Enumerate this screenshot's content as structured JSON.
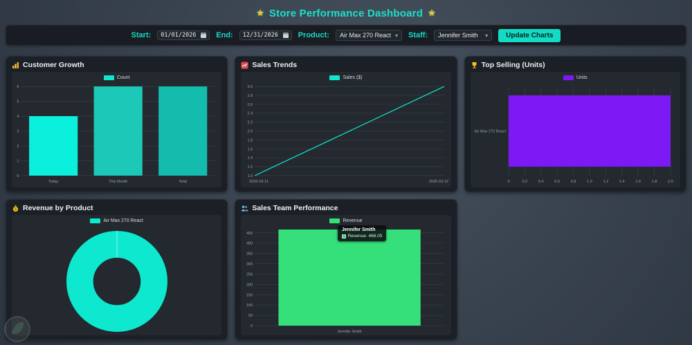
{
  "app": {
    "title": "Store Performance Dashboard",
    "star": "★"
  },
  "filters": {
    "start_label": "Start:",
    "start_value": "01/01/2026",
    "end_label": "End:",
    "end_value": "12/31/2026",
    "product_label": "Product:",
    "product_value": "Air Max 270 React",
    "staff_label": "Staff:",
    "staff_value": "Jennifer Smith",
    "update_button": "Update Charts"
  },
  "panels": [
    {
      "title": "Customer Growth",
      "icon": "bar-chart-icon"
    },
    {
      "title": "Sales Trends",
      "icon": "trend-chart-icon"
    },
    {
      "title": "Top Selling (Units)",
      "icon": "trophy-icon"
    },
    {
      "title": "Revenue by Product",
      "icon": "money-bag-icon"
    },
    {
      "title": "Sales Team Performance",
      "icon": "team-icon"
    }
  ],
  "tooltip": {
    "title": "Jennifer Smith",
    "label": "Revenue: 466.05"
  },
  "chart_data": [
    {
      "type": "bar",
      "title": "Customer Growth",
      "legend": "Count",
      "legend_color": "#0de8cf",
      "categories": [
        "Today",
        "This Month",
        "Total"
      ],
      "values": [
        4,
        6,
        6
      ],
      "bar_colors": [
        "#0af0dc",
        "#1cc9b8",
        "#14bcae"
      ],
      "ylim": [
        0,
        6
      ],
      "ystep": 1,
      "grid": true,
      "legend_position": "top"
    },
    {
      "type": "line",
      "title": "Sales Trends",
      "legend": "Sales ($)",
      "legend_color": "#0de8cf",
      "x": [
        "2026-03-11",
        "2026-03-12"
      ],
      "values": [
        1.0,
        3.0
      ],
      "line_color": "#0de8cf",
      "ylim": [
        1.0,
        3.0
      ],
      "ystep": 0.2,
      "grid": true,
      "legend_position": "top"
    },
    {
      "type": "hbar",
      "title": "Top Selling (Units)",
      "legend": "Units",
      "legend_color": "#7c19f5",
      "categories": [
        "Air Max 270 React"
      ],
      "values": [
        2.0
      ],
      "bar_colors": [
        "#7c19f5"
      ],
      "xlim": [
        0,
        2.0
      ],
      "xstep": 0.2,
      "grid": true,
      "legend_position": "top"
    },
    {
      "type": "doughnut",
      "title": "Revenue by Product",
      "legend": "Air Max 270 React",
      "legend_color": "#0de8cf",
      "labels": [
        "Air Max 270 React"
      ],
      "values": [
        466.05
      ],
      "colors": [
        "#0de8cf"
      ],
      "legend_position": "top"
    },
    {
      "type": "bar",
      "title": "Sales Team Performance",
      "legend": "Revenue",
      "legend_color": "#35e07a",
      "categories": [
        "Jennifer Smith"
      ],
      "values": [
        466.05
      ],
      "bar_colors": [
        "#35e07a"
      ],
      "ylim": [
        0,
        450
      ],
      "ystep": 50,
      "grid": true,
      "legend_position": "top",
      "tooltip": {
        "title": "Jennifer Smith",
        "value": "Revenue: 466.05"
      }
    }
  ]
}
